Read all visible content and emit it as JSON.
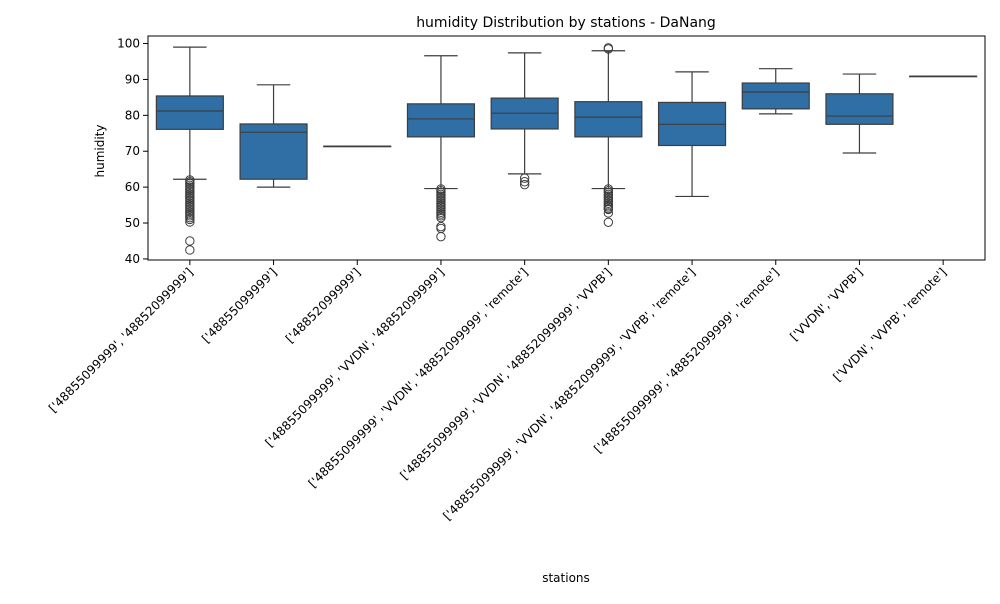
{
  "chart_data": {
    "type": "box",
    "title": "humidity Distribution by stations - DaNang",
    "xlabel": "stations",
    "ylabel": "humidity",
    "ylim": [
      39.7,
      102.1
    ],
    "yticks": [
      40,
      50,
      60,
      70,
      80,
      90,
      100
    ],
    "grid": false,
    "box_color": "#2f6fa6",
    "line_color": "#3d3d3d",
    "categories": [
      "['48855099999', '48852099999']",
      "['48855099999']",
      "['48852099999']",
      "['48855099999', 'VVDN', '48852099999']",
      "['48855099999', 'VVDN', '48852099999', 'remote']",
      "['48855099999', 'VVDN', '48852099999', 'VVPB']",
      "['48855099999', 'VVDN', '48852099999', 'VVPB', 'remote']",
      "['48855099999', '48852099999', 'remote']",
      "['VVDN', 'VVPB']",
      "['VVDN', 'VVPB', 'remote']"
    ],
    "boxes": [
      {
        "whisker_low": 62.2,
        "q1": 76.1,
        "median": 81.2,
        "q3": 85.4,
        "whisker_high": 99.0,
        "outliers": [
          62.0,
          61.5,
          61.0,
          60.5,
          60.0,
          59.5,
          59.0,
          58.5,
          58.0,
          57.5,
          57.0,
          56.5,
          56.0,
          55.5,
          55.0,
          54.5,
          54.0,
          53.5,
          53.0,
          52.5,
          52.0,
          51.5,
          51.0,
          50.3,
          45.0,
          42.5
        ]
      },
      {
        "whisker_low": 60.0,
        "q1": 62.2,
        "median": 75.3,
        "q3": 77.6,
        "whisker_high": 88.5,
        "outliers": []
      },
      {
        "whisker_low": 71.4,
        "q1": 71.4,
        "median": 71.4,
        "q3": 71.4,
        "whisker_high": 71.4,
        "outliers": []
      },
      {
        "whisker_low": 59.6,
        "q1": 74.0,
        "median": 79.0,
        "q3": 83.2,
        "whisker_high": 96.6,
        "outliers": [
          59.5,
          59.0,
          58.5,
          58.0,
          57.5,
          57.0,
          56.5,
          56.0,
          55.5,
          55.0,
          54.5,
          54.0,
          53.5,
          53.0,
          52.5,
          52.0,
          51.5,
          49.0,
          48.5,
          46.2
        ]
      },
      {
        "whisker_low": 63.7,
        "q1": 76.2,
        "median": 80.6,
        "q3": 84.8,
        "whisker_high": 97.4,
        "outliers": [
          62.5,
          61.5,
          60.7
        ]
      },
      {
        "whisker_low": 59.6,
        "q1": 74.0,
        "median": 79.5,
        "q3": 83.8,
        "whisker_high": 98.0,
        "outliers": [
          98.5,
          98.8,
          59.5,
          59.0,
          58.5,
          58.0,
          57.5,
          57.0,
          56.5,
          56.0,
          55.5,
          55.0,
          54.5,
          54.0,
          53.8,
          52.8,
          50.2
        ]
      },
      {
        "whisker_low": 57.4,
        "q1": 71.6,
        "median": 77.5,
        "q3": 83.6,
        "whisker_high": 92.1,
        "outliers": []
      },
      {
        "whisker_low": 80.4,
        "q1": 81.8,
        "median": 86.5,
        "q3": 89.0,
        "whisker_high": 93.0,
        "outliers": []
      },
      {
        "whisker_low": 69.5,
        "q1": 77.5,
        "median": 79.8,
        "q3": 86.0,
        "whisker_high": 91.5,
        "outliers": []
      },
      {
        "whisker_low": 90.9,
        "q1": 90.9,
        "median": 90.9,
        "q3": 90.9,
        "whisker_high": 90.9,
        "outliers": []
      }
    ]
  }
}
